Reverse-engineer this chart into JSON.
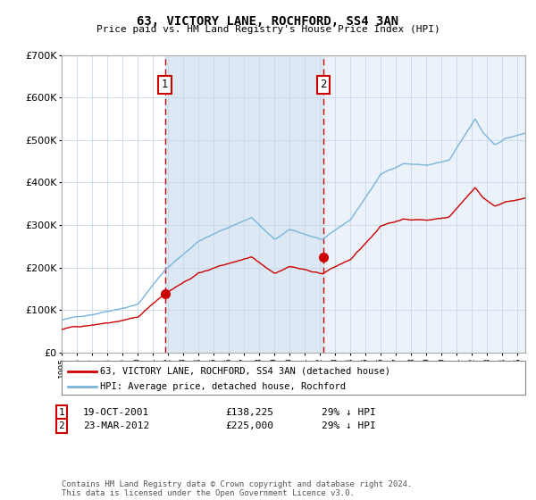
{
  "title": "63, VICTORY LANE, ROCHFORD, SS4 3AN",
  "subtitle": "Price paid vs. HM Land Registry's House Price Index (HPI)",
  "hpi_color": "#7ab4d8",
  "price_color": "#cc0000",
  "bg_fill_color": "#dce9f5",
  "purchase1_date": 2001.8,
  "purchase2_date": 2012.22,
  "purchase1_price": 138225,
  "purchase2_price": 225000,
  "legend_line1": "63, VICTORY LANE, ROCHFORD, SS4 3AN (detached house)",
  "legend_line2": "HPI: Average price, detached house, Rochford",
  "note1_date": "19-OCT-2001",
  "note1_price": "£138,225",
  "note1_pct": "29% ↓ HPI",
  "note2_date": "23-MAR-2012",
  "note2_price": "£225,000",
  "note2_pct": "29% ↓ HPI",
  "footer": "Contains HM Land Registry data © Crown copyright and database right 2024.\nThis data is licensed under the Open Government Licence v3.0.",
  "ylim": [
    0,
    700000
  ],
  "xlim_start": 1995.0,
  "xlim_end": 2025.5
}
